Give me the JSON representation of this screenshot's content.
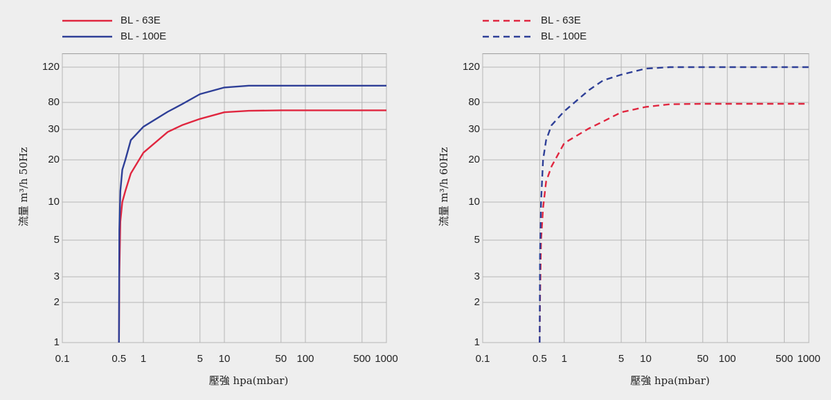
{
  "chart_data": [
    {
      "type": "line",
      "xlabel": "壓強 hpa(mbar)",
      "ylabel": "流量 m³/h 50Hz",
      "xscale": "log",
      "yscale": "log",
      "grid": true,
      "legend": "top-left",
      "xlim": [
        0.1,
        1000
      ],
      "xticks": [
        0.1,
        0.5,
        1,
        5,
        10,
        50,
        100,
        500,
        1000
      ],
      "ylim": [
        1,
        140
      ],
      "yticks": [
        1,
        2,
        3,
        5,
        10,
        20,
        30,
        80,
        120
      ],
      "x": [
        0.5,
        0.505,
        0.52,
        0.55,
        0.6,
        0.7,
        1,
        2,
        3,
        5,
        10,
        20,
        50,
        100,
        1000
      ],
      "series": [
        {
          "name": "BL - 63E",
          "color": "#e0263f",
          "dashed": false,
          "values": [
            1,
            3,
            7,
            10,
            12,
            16,
            22,
            29,
            35,
            44,
            56,
            59,
            60,
            60,
            60
          ]
        },
        {
          "name": "BL - 100E",
          "color": "#2e3f97",
          "dashed": false,
          "values": [
            1,
            6,
            12,
            17,
            20,
            26,
            33,
            57,
            75,
            88,
            95,
            97,
            97,
            97,
            97
          ]
        }
      ]
    },
    {
      "type": "line",
      "xlabel": "壓強 hpa(mbar)",
      "ylabel": "流量 m³/h 60Hz",
      "xscale": "log",
      "yscale": "log",
      "grid": true,
      "legend": "top-left",
      "xlim": [
        0.1,
        1000
      ],
      "xticks": [
        0.1,
        0.5,
        1,
        5,
        10,
        50,
        100,
        500,
        1000
      ],
      "ylim": [
        1,
        140
      ],
      "yticks": [
        1,
        2,
        3,
        5,
        10,
        20,
        30,
        80,
        120
      ],
      "x": [
        0.5,
        0.505,
        0.52,
        0.55,
        0.6,
        0.7,
        1,
        2,
        3,
        5,
        10,
        20,
        50,
        100,
        1000
      ],
      "series": [
        {
          "name": "BL - 63E",
          "color": "#e0263f",
          "dashed": true,
          "values": [
            1,
            2,
            5,
            9,
            14,
            18,
            25,
            31,
            40,
            56,
            68,
            75,
            76,
            76,
            76
          ]
        },
        {
          "name": "BL - 100E",
          "color": "#2e3f97",
          "dashed": true,
          "values": [
            1,
            4,
            10,
            20,
            26,
            35,
            58,
            92,
            103,
            110,
            118,
            120,
            120,
            120,
            120
          ]
        }
      ]
    }
  ]
}
